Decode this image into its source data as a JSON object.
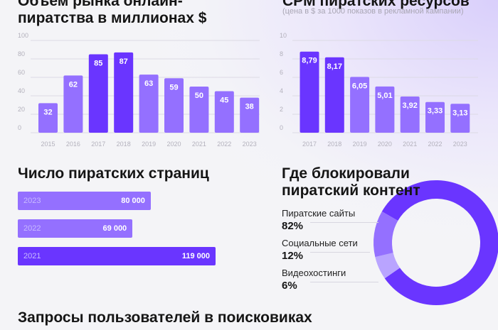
{
  "colors": {
    "dark": "#6a35ff",
    "mid": "#9470ff",
    "light": "#b9a4ff",
    "grid": "#dcdae4",
    "axis": "#b3b1bc"
  },
  "chart_data": [
    {
      "type": "bar",
      "title": "Объем рынка онлайн-пиратства в миллионах $",
      "categories": [
        "2015",
        "2016",
        "2017",
        "2018",
        "2019",
        "2020",
        "2021",
        "2022",
        "2023"
      ],
      "values": [
        32,
        62,
        85,
        87,
        63,
        59,
        50,
        45,
        38
      ],
      "data_labels": [
        "32",
        "62",
        "85",
        "87",
        "63",
        "59",
        "50",
        "45",
        "38"
      ],
      "highlight": [
        "2017",
        "2018"
      ],
      "ylim": [
        0,
        100
      ],
      "yticks": [
        "0",
        "20",
        "40",
        "60",
        "80",
        "100"
      ],
      "grid": true
    },
    {
      "type": "bar",
      "title": "CPM пиратских ресурсов",
      "subtitle": "(цена в $ за 1000 показов в рекламной кампании)",
      "categories": [
        "2017",
        "2018",
        "2019",
        "2020",
        "2021",
        "2022",
        "2023"
      ],
      "values": [
        8.79,
        8.17,
        6.05,
        5.01,
        3.92,
        3.33,
        3.13
      ],
      "data_labels": [
        "8,79",
        "8,17",
        "6,05",
        "5,01",
        "3,92",
        "3,33",
        "3,13"
      ],
      "highlight": [
        "2017",
        "2018"
      ],
      "ylim": [
        0,
        10
      ],
      "yticks": [
        "0",
        "2",
        "4",
        "6",
        "8",
        "10"
      ],
      "grid": true
    },
    {
      "type": "bar",
      "orientation": "horizontal",
      "title": "Число пиратских страниц",
      "categories": [
        "2023",
        "2022",
        "2021"
      ],
      "values": [
        80000,
        69000,
        119000
      ],
      "data_labels": [
        "80 000",
        "69 000",
        "119 000"
      ],
      "highlight": [
        "2021"
      ]
    },
    {
      "type": "pie",
      "donut": true,
      "title": "Где блокировали пиратский контент",
      "labels": [
        "Пиратские сайты",
        "Социальные сети",
        "Видеохостинги"
      ],
      "values": [
        82,
        12,
        6
      ],
      "data_labels": [
        "82%",
        "12%",
        "6%"
      ]
    }
  ],
  "footer_title": "Запросы пользователей в поисковиках"
}
